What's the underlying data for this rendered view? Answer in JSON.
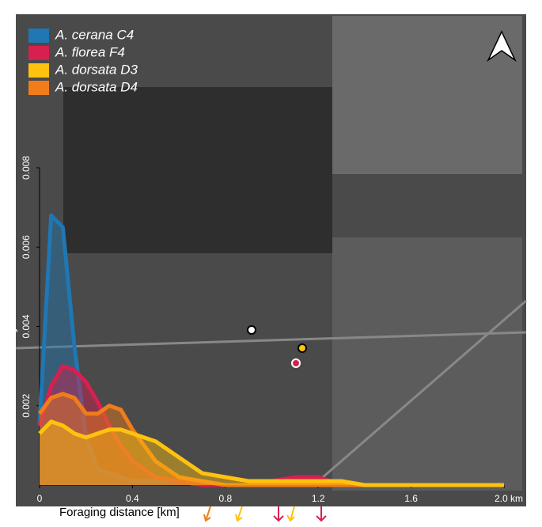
{
  "chart_data": {
    "type": "area",
    "x_label": "Foraging distance [km]",
    "y_label": "Density",
    "x": [
      0,
      0.05,
      0.1,
      0.15,
      0.2,
      0.25,
      0.3,
      0.35,
      0.4,
      0.5,
      0.6,
      0.7,
      0.8,
      0.9,
      1.0,
      1.1,
      1.2,
      1.3,
      1.4,
      1.6,
      1.8,
      2.0
    ],
    "series": [
      {
        "name": "A. cerana C4",
        "color": "#1f77b4",
        "values": [
          0.0015,
          0.0068,
          0.0065,
          0.0035,
          0.0012,
          0.0004,
          0.0003,
          0.0002,
          0.0001,
          0.0001,
          0.0001,
          0,
          0,
          0,
          0,
          0,
          0,
          0,
          0,
          0,
          0,
          0
        ]
      },
      {
        "name": "A. florea F4",
        "color": "#d62050",
        "values": [
          0.0015,
          0.0025,
          0.003,
          0.0029,
          0.0026,
          0.0021,
          0.0015,
          0.001,
          0.0006,
          0.0002,
          0.0001,
          0,
          0,
          0,
          0.0001,
          0.0002,
          0.0002,
          0,
          0,
          0,
          0,
          0
        ]
      },
      {
        "name": "A. dorsata D3",
        "color": "#ffc20e",
        "values": [
          0.0013,
          0.0016,
          0.0015,
          0.0013,
          0.0012,
          0.0013,
          0.0014,
          0.0014,
          0.0013,
          0.0011,
          0.0007,
          0.0003,
          0.0002,
          0.0001,
          0.0001,
          0.0001,
          0.0001,
          0.0001,
          0,
          0,
          0,
          0
        ]
      },
      {
        "name": "A. dorsata D4",
        "color": "#f07d1a",
        "values": [
          0.0018,
          0.0022,
          0.0023,
          0.0022,
          0.0018,
          0.0018,
          0.002,
          0.0019,
          0.0014,
          0.0006,
          0.0002,
          0.0001,
          0,
          0,
          0,
          0,
          0,
          0,
          0,
          0,
          0,
          0
        ]
      }
    ],
    "xlim": [
      0,
      2.0
    ],
    "ylim": [
      0,
      0.008
    ],
    "xticks": [
      0,
      0.4,
      0.8,
      1.2,
      1.6,
      {
        "value": 2.0,
        "label": "2.0 km"
      }
    ],
    "yticks": [
      0.002,
      0.004,
      0.006,
      0.008
    ]
  }
}
